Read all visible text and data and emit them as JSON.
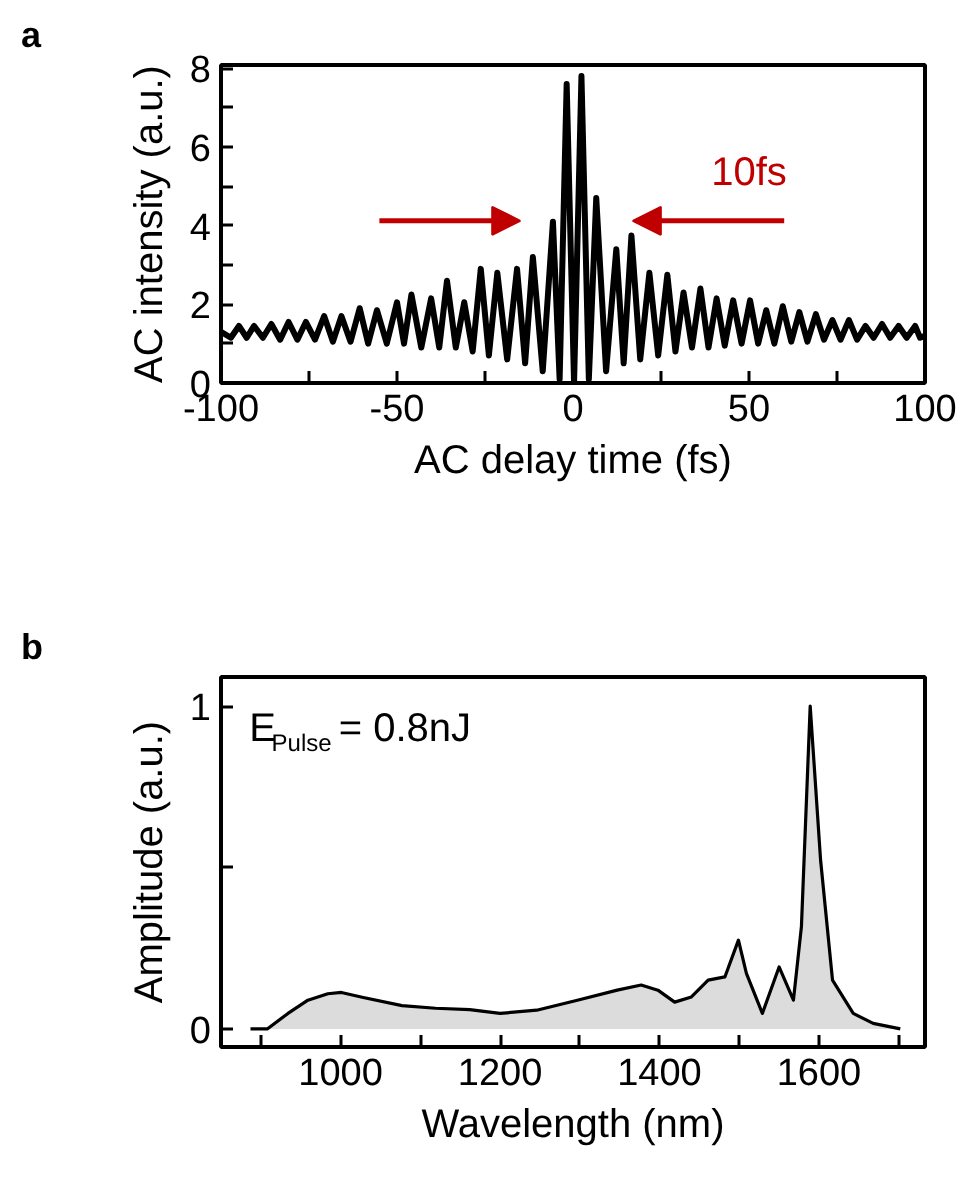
{
  "chart_data": [
    {
      "type": "line",
      "title": "a",
      "xlabel": "AC delay time (fs)",
      "ylabel": "AC intensity (a.u.)",
      "xlim": [
        -100,
        100
      ],
      "xticks": [
        -100,
        {
          "value": -75,
          "label": null
        },
        -50,
        {
          "value": -25,
          "label": null
        },
        0,
        {
          "value": 25,
          "label": null
        },
        50,
        {
          "value": 75,
          "label": null
        },
        100
      ],
      "ylim": [
        0,
        8.08
      ],
      "yticks": [
        0,
        {
          "value": 1,
          "label": null
        },
        2,
        {
          "value": 3,
          "label": null
        },
        4,
        {
          "value": 5,
          "label": null
        },
        6,
        {
          "value": 7,
          "label": null
        },
        8
      ],
      "grid": false,
      "annotations": [
        "10fs"
      ],
      "series": [
        {
          "color": "#000000",
          "x": [
            -100,
            -97.2,
            -94.9,
            -92.7,
            -90.6,
            -88.1,
            -85.7,
            -83.2,
            -80.8,
            -78.3,
            -75.9,
            -73.3,
            -70.7,
            -68.2,
            -65.8,
            -63.2,
            -60.6,
            -58.2,
            -55.7,
            -52.9,
            -50,
            -48,
            -45.9,
            -43.1,
            -40.3,
            -38,
            -35.8,
            -33.3,
            -30.9,
            -28.5,
            -26.2,
            -23.9,
            -21.5,
            -18.7,
            -15.9,
            -13.6,
            -11.4,
            -8.6,
            -5.7,
            -3.8,
            -1.8,
            0.3,
            2.4,
            4.5,
            6.6,
            9.4,
            12.3,
            14.4,
            16.6,
            19.1,
            21.7,
            24.2,
            26.8,
            29.1,
            31.4,
            33.8,
            36.2,
            38.5,
            40.8,
            43.1,
            45.5,
            47.9,
            50.3,
            52.6,
            54.9,
            57.2,
            59.6,
            62,
            64.3,
            66.6,
            69,
            71.3,
            73.7,
            76,
            78.4,
            80.7,
            83.1,
            85.4,
            87.8,
            90.1,
            92.5,
            94.8,
            97.2,
            98.6,
            100
          ],
          "values": [
            1.3,
            1.15,
            1.45,
            1.15,
            1.45,
            1.15,
            1.5,
            1.1,
            1.55,
            1.1,
            1.55,
            1.1,
            1.7,
            1.05,
            1.7,
            1.05,
            1.9,
            1.0,
            1.85,
            1.0,
            2.05,
            1.0,
            2.25,
            0.9,
            2.15,
            0.9,
            2.6,
            0.9,
            2.05,
            0.8,
            2.9,
            0.7,
            2.8,
            0.6,
            2.9,
            0.5,
            3.2,
            0.3,
            4.1,
            0.1,
            7.6,
            0.0,
            7.8,
            0.1,
            4.7,
            0.3,
            3.4,
            0.5,
            3.75,
            0.6,
            2.8,
            0.7,
            2.75,
            0.8,
            2.3,
            0.9,
            2.4,
            0.9,
            2.15,
            0.95,
            2.1,
            1.0,
            2.1,
            1.0,
            1.85,
            1.0,
            1.95,
            1.05,
            1.8,
            1.05,
            1.75,
            1.1,
            1.6,
            1.1,
            1.6,
            1.1,
            1.45,
            1.15,
            1.5,
            1.15,
            1.45,
            1.15,
            1.45,
            1.15,
            1.2
          ]
        }
      ]
    },
    {
      "type": "area",
      "title": "b",
      "xlabel": "Wavelength (nm)",
      "ylabel": "Amplitude (a.u.)",
      "xlim": [
        850,
        1733
      ],
      "xticks": [
        {
          "value": 900,
          "label": null
        },
        1000,
        {
          "value": 1100,
          "label": null
        },
        1200,
        {
          "value": 1300,
          "label": null
        },
        1400,
        {
          "value": 1500,
          "label": null
        },
        1600,
        {
          "value": 1700,
          "label": null
        }
      ],
      "ylim": [
        -0.056,
        1.09
      ],
      "yticks": [
        0,
        {
          "value": 0.5,
          "label": null
        },
        1
      ],
      "grid": false,
      "annotations": [
        "E$_{Pulse}$ = 0.8nJ"
      ],
      "series": [
        {
          "color": "#dcdcdc",
          "x": [
            887,
            908,
            934,
            959,
            984,
            1001,
            1027,
            1077,
            1119,
            1162,
            1200,
            1246,
            1297,
            1347,
            1377,
            1398,
            1419,
            1440,
            1461,
            1482,
            1499,
            1509,
            1529,
            1550,
            1568,
            1578,
            1589,
            1602,
            1617,
            1643,
            1668,
            1702
          ],
          "values": [
            0.0,
            0.0,
            0.048,
            0.089,
            0.109,
            0.113,
            0.098,
            0.072,
            0.064,
            0.06,
            0.048,
            0.058,
            0.089,
            0.12,
            0.136,
            0.12,
            0.083,
            0.099,
            0.151,
            0.161,
            0.275,
            0.172,
            0.048,
            0.192,
            0.089,
            0.317,
            1.0,
            0.524,
            0.151,
            0.048,
            0.017,
            0.0
          ]
        }
      ]
    }
  ]
}
